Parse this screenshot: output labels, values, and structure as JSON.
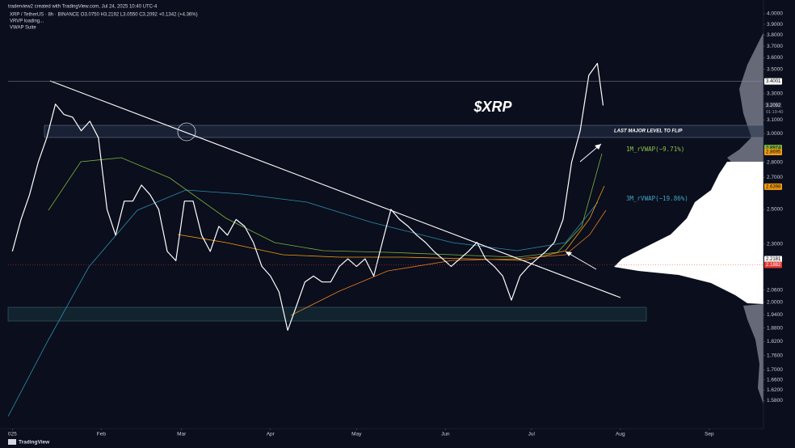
{
  "chart_data": {
    "type": "line",
    "header": "traderview2 created with TradingView.com, Jul 24, 2025 10:40 UTC-4",
    "title": "XRP / TetherUS · 8h · BINANCE  O3.0750 H3.2192 L3.0550 C3.2092 +0.1342 (+4.36%)",
    "indicators": [
      "VRVP loading...",
      "VWAP Suite"
    ],
    "annotations": {
      "symbol": "$XRP",
      "level": "LAST MAJOR LEVEL TO FLIP",
      "vwap_1m": "1M_rVWAP(−9.71%)",
      "vwap_3m": "3M_rVWAP(−19.86%)",
      "countdown": "01:19:40"
    },
    "footer": "TradingView",
    "log_scale": true,
    "xlim": [
      -1.5,
      260.5
    ],
    "xticks": [
      {
        "value": 0,
        "label": "025"
      },
      {
        "value": 31,
        "label": "Feb"
      },
      {
        "value": 59,
        "label": "Mar"
      },
      {
        "value": 90,
        "label": "Apr"
      },
      {
        "value": 120,
        "label": "May"
      },
      {
        "value": 151,
        "label": "Jun"
      },
      {
        "value": 181,
        "label": "Jul"
      },
      {
        "value": 212,
        "label": "Aug"
      },
      {
        "value": 243,
        "label": "Sep"
      }
    ],
    "ylim": [
      1.55,
      4.0
    ],
    "yticks": [
      {
        "value": 4,
        "label": "4.0000"
      },
      {
        "value": 3.9,
        "label": "3.9000"
      },
      {
        "value": 3.8,
        "label": "3.8000"
      },
      {
        "value": 3.7,
        "label": "3.7000"
      },
      {
        "value": 3.6,
        "label": "3.6000"
      },
      {
        "value": 3.5,
        "label": "3.5000"
      },
      {
        "value": 3.3,
        "label": "3.3000"
      },
      {
        "value": 3.1,
        "label": "3.1000"
      },
      {
        "value": 3,
        "label": "3.0000"
      },
      {
        "value": 2.8,
        "label": "2.8000"
      },
      {
        "value": 2.7,
        "label": "2.7000"
      },
      {
        "value": 2.5,
        "label": "2.5000"
      },
      {
        "value": 2.3,
        "label": "2.3000"
      },
      {
        "value": 2.06,
        "label": "2.0600"
      },
      {
        "value": 2,
        "label": "2.0000"
      },
      {
        "value": 1.94,
        "label": "1.9400"
      },
      {
        "value": 1.88,
        "label": "1.8800"
      },
      {
        "value": 1.82,
        "label": "1.8200"
      },
      {
        "value": 1.76,
        "label": "1.7600"
      },
      {
        "value": 1.7,
        "label": "1.7000"
      },
      {
        "value": 1.66,
        "label": "1.6600"
      },
      {
        "value": 1.62,
        "label": "1.6200"
      },
      {
        "value": 1.58,
        "label": "1.5800"
      }
    ],
    "price_tags": [
      {
        "value": 3.4001,
        "color": "#ffffff",
        "text_color": "#000000"
      },
      {
        "value": 3.2092,
        "color": "#1c2030",
        "text_color": "#ffffff"
      },
      {
        "value": 2.8974,
        "color": "#7cb342",
        "text_color": "#000000"
      },
      {
        "value": 2.8695,
        "color": "#f39c12",
        "text_color": "#000000"
      },
      {
        "value": 2.6398,
        "color": "#f39c12",
        "text_color": "#000000"
      },
      {
        "value": 2.2181,
        "color": "#ffffff",
        "text_color": "#000000"
      },
      {
        "value": 2.1882,
        "color": "#e53935",
        "text_color": "#ffffff"
      }
    ],
    "series": [
      {
        "name": "XRP / TetherUS",
        "color": "#ffffff",
        "x": [
          0,
          3,
          6,
          9,
          12,
          15,
          18,
          21,
          24,
          27,
          30,
          33,
          36,
          39,
          42,
          45,
          48,
          51,
          54,
          57,
          60,
          63,
          66,
          69,
          72,
          75,
          78,
          81,
          84,
          87,
          90,
          93,
          96,
          99,
          102,
          105,
          108,
          111,
          114,
          117,
          120,
          123,
          126,
          129,
          132,
          135,
          138,
          141,
          144,
          147,
          150,
          153,
          156,
          159,
          162,
          165,
          168,
          171,
          174,
          177,
          180,
          183,
          186,
          189,
          192,
          195,
          198,
          201,
          204,
          206
        ],
        "values": [
          2.26,
          2.44,
          2.59,
          2.8,
          2.97,
          3.22,
          3.14,
          3.12,
          3.02,
          3.09,
          2.97,
          2.5,
          2.35,
          2.55,
          2.55,
          2.65,
          2.59,
          2.5,
          2.26,
          2.21,
          2.55,
          2.55,
          2.35,
          2.26,
          2.4,
          2.35,
          2.44,
          2.4,
          2.31,
          2.18,
          2.13,
          2.05,
          1.87,
          1.98,
          2.1,
          2.13,
          2.1,
          2.1,
          2.18,
          2.22,
          2.18,
          2.22,
          2.13,
          2.31,
          2.5,
          2.44,
          2.4,
          2.35,
          2.31,
          2.26,
          2.22,
          2.18,
          2.22,
          2.26,
          2.31,
          2.22,
          2.18,
          2.13,
          2.01,
          2.13,
          2.18,
          2.22,
          2.26,
          2.31,
          2.44,
          2.8,
          3.02,
          3.45,
          3.55,
          3.2092
        ]
      }
    ]
  }
}
